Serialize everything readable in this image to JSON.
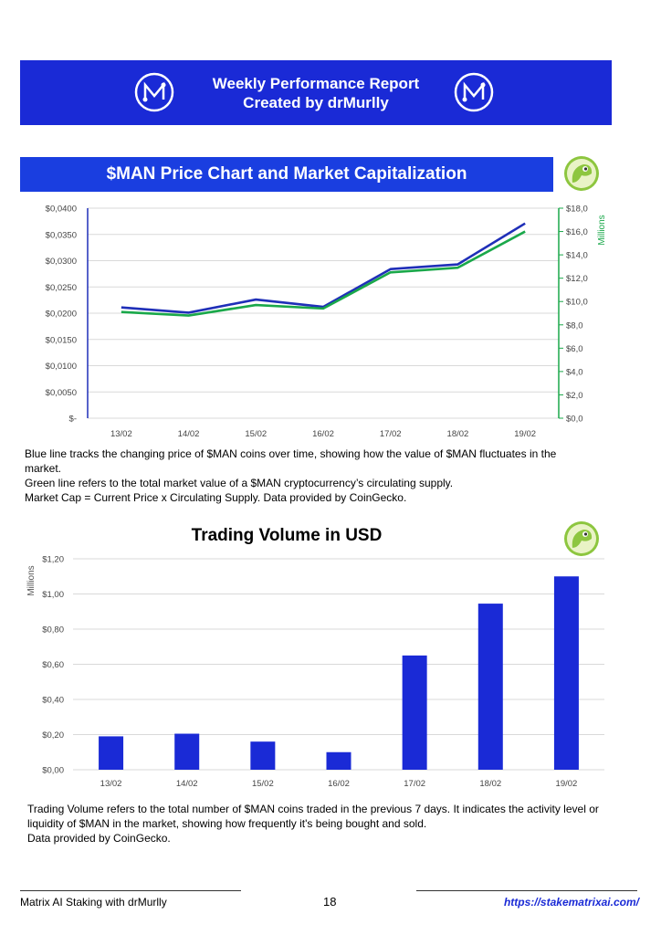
{
  "banner": {
    "line1": "Weekly Performance Report",
    "line2": "Created by drMurlly",
    "color": "#1a2ad6"
  },
  "price_section": {
    "title": "$MAN Price Chart and Market Capitalization",
    "captions": [
      "Blue line tracks the changing price of $MAN coins over time, showing how the value of $MAN fluctuates in the market.",
      "Green line refers to the total market value of a $MAN cryptocurrency’s circulating supply.",
      "Market Cap = Current Price x Circulating Supply. Data provided by CoinGecko."
    ]
  },
  "volume_section": {
    "title": "Trading Volume in USD",
    "captions": [
      "Trading Volume refers to the total number of $MAN coins traded in the previous 7 days. It indicates the activity level or liquidity of $MAN in the market, showing how frequently it's being bought and sold.",
      "Data provided by CoinGecko."
    ]
  },
  "footer": {
    "left": "Matrix AI Staking with drMurlly",
    "page": "18",
    "url": "https://stakematrixai.com/"
  },
  "chart_data": [
    {
      "type": "line",
      "categories": [
        "13/02",
        "14/02",
        "15/02",
        "16/02",
        "17/02",
        "18/02",
        "19/02"
      ],
      "series": [
        {
          "axis": "left",
          "color": "#1f2fb8",
          "values": [
            0.0211,
            0.0201,
            0.0226,
            0.0212,
            0.0284,
            0.0293,
            0.0371
          ]
        },
        {
          "axis": "right",
          "color": "#1aa84a",
          "values": [
            9.1,
            8.8,
            9.7,
            9.4,
            12.5,
            12.9,
            16.0
          ]
        }
      ],
      "left_axis": {
        "ticks": [
          "$-",
          "$0,0050",
          "$0,0100",
          "$0,0150",
          "$0,0200",
          "$0,0250",
          "$0,0300",
          "$0,0350",
          "$0,0400"
        ],
        "ylim": [
          0,
          0.04
        ]
      },
      "right_axis": {
        "ticks": [
          "$0,0",
          "$2,0",
          "$4,0",
          "$6,0",
          "$8,0",
          "$10,0",
          "$12,0",
          "$14,0",
          "$16,0",
          "$18,0"
        ],
        "ylim": [
          0,
          18
        ],
        "label": "Millions"
      },
      "grid": true
    },
    {
      "type": "bar",
      "categories": [
        "13/02",
        "14/02",
        "15/02",
        "16/02",
        "17/02",
        "18/02",
        "19/02"
      ],
      "values": [
        0.19,
        0.205,
        0.16,
        0.1,
        0.65,
        0.945,
        1.1
      ],
      "color": "#1a2ad6",
      "y_ticks": [
        "$0,00",
        "$0,20",
        "$0,40",
        "$0,60",
        "$0,80",
        "$1,00",
        "$1,20"
      ],
      "ylim": [
        0,
        1.2
      ],
      "ylabel": "Millions",
      "grid": true
    }
  ]
}
